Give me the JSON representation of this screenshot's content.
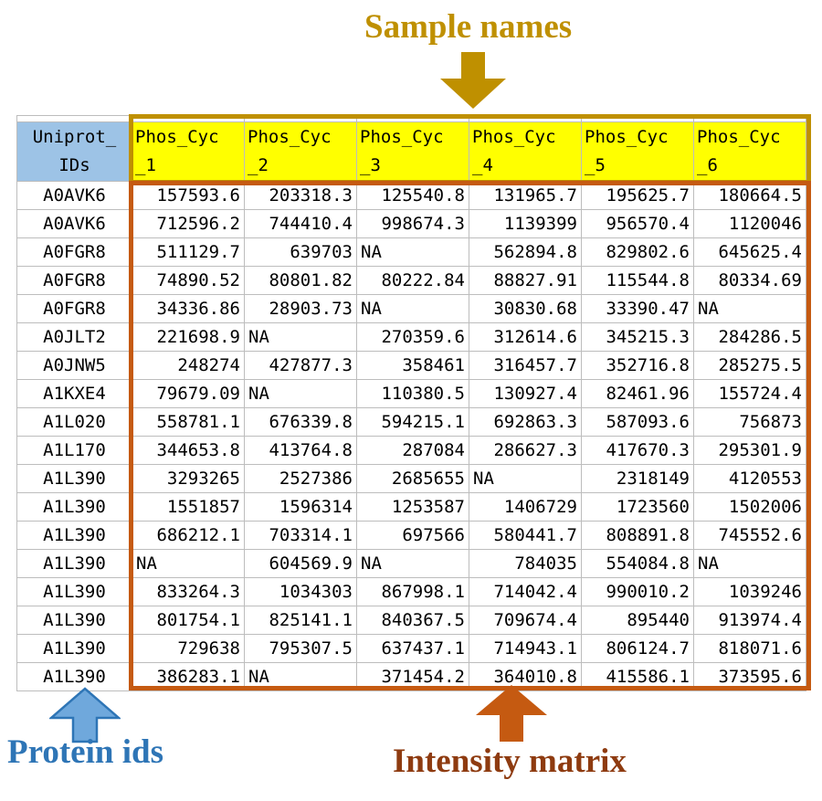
{
  "annotations": {
    "sample_names": "Sample names",
    "protein_ids": "Protein ids",
    "intensity_matrix": "Intensity matrix"
  },
  "colors": {
    "golden": "#BF9000",
    "orange": "#C55A11",
    "brown_text": "#8E3B10",
    "blue_text": "#2E75B6",
    "blue_arrow_fill": "#6FA8DC",
    "blue_arrow_stroke": "#2E75B6",
    "yellow_header_bg": "#FFFF00",
    "blue_header_bg": "#9DC3E6",
    "gridline": "#BDBDBD"
  },
  "table": {
    "id_header": "Uniprot_\nIDs",
    "sample_headers": [
      "Phos_Cyc\n_1",
      "Phos_Cyc\n_2",
      "Phos_Cyc\n_3",
      "Phos_Cyc\n_4",
      "Phos_Cyc\n_5",
      "Phos_Cyc\n_6"
    ],
    "rows": [
      {
        "id": "A0AVK6",
        "values": [
          "157593.6",
          "203318.3",
          "125540.8",
          "131965.7",
          "195625.7",
          "180664.5"
        ]
      },
      {
        "id": "A0AVK6",
        "values": [
          "712596.2",
          "744410.4",
          "998674.3",
          "1139399",
          "956570.4",
          "1120046"
        ]
      },
      {
        "id": "A0FGR8",
        "values": [
          "511129.7",
          "639703",
          "NA",
          "562894.8",
          "829802.6",
          "645625.4"
        ]
      },
      {
        "id": "A0FGR8",
        "values": [
          "74890.52",
          "80801.82",
          "80222.84",
          "88827.91",
          "115544.8",
          "80334.69"
        ]
      },
      {
        "id": "A0FGR8",
        "values": [
          "34336.86",
          "28903.73",
          "NA",
          "30830.68",
          "33390.47",
          "NA"
        ]
      },
      {
        "id": "A0JLT2",
        "values": [
          "221698.9",
          "NA",
          "270359.6",
          "312614.6",
          "345215.3",
          "284286.5"
        ]
      },
      {
        "id": "A0JNW5",
        "values": [
          "248274",
          "427877.3",
          "358461",
          "316457.7",
          "352716.8",
          "285275.5"
        ]
      },
      {
        "id": "A1KXE4",
        "values": [
          "79679.09",
          "NA",
          "110380.5",
          "130927.4",
          "82461.96",
          "155724.4"
        ]
      },
      {
        "id": "A1L020",
        "values": [
          "558781.1",
          "676339.8",
          "594215.1",
          "692863.3",
          "587093.6",
          "756873"
        ]
      },
      {
        "id": "A1L170",
        "values": [
          "344653.8",
          "413764.8",
          "287084",
          "286627.3",
          "417670.3",
          "295301.9"
        ]
      },
      {
        "id": "A1L390",
        "values": [
          "3293265",
          "2527386",
          "2685655",
          "NA",
          "2318149",
          "4120553"
        ]
      },
      {
        "id": "A1L390",
        "values": [
          "1551857",
          "1596314",
          "1253587",
          "1406729",
          "1723560",
          "1502006"
        ]
      },
      {
        "id": "A1L390",
        "values": [
          "686212.1",
          "703314.1",
          "697566",
          "580441.7",
          "808891.8",
          "745552.6"
        ]
      },
      {
        "id": "A1L390",
        "values": [
          "NA",
          "604569.9",
          "NA",
          "784035",
          "554084.8",
          "NA"
        ]
      },
      {
        "id": "A1L390",
        "values": [
          "833264.3",
          "1034303",
          "867998.1",
          "714042.4",
          "990010.2",
          "1039246"
        ]
      },
      {
        "id": "A1L390",
        "values": [
          "801754.1",
          "825141.1",
          "840367.5",
          "709674.4",
          "895440",
          "913974.4"
        ]
      },
      {
        "id": "A1L390",
        "values": [
          "729638",
          "795307.5",
          "637437.1",
          "714943.1",
          "806124.7",
          "818071.6"
        ]
      },
      {
        "id": "A1L390",
        "values": [
          "386283.1",
          "NA",
          "371454.2",
          "364010.8",
          "415586.1",
          "373595.6"
        ]
      }
    ]
  }
}
